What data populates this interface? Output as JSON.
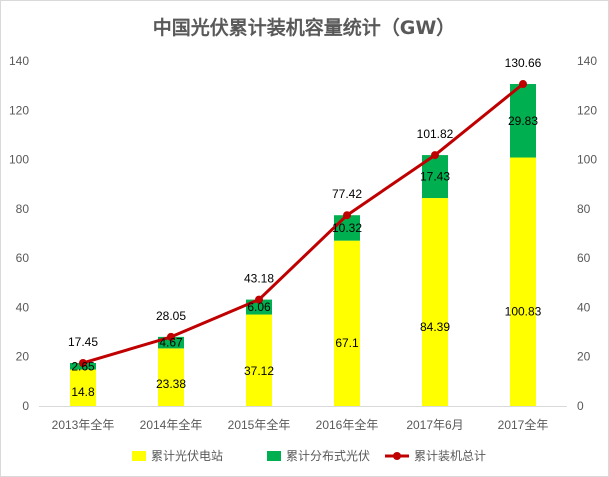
{
  "chart_data": {
    "type": "bar",
    "stacked": true,
    "title": "中国光伏累计装机容量统计（GW）",
    "categories": [
      "2013年全年",
      "2014年全年",
      "2015年全年",
      "2016年全年",
      "2017年6月",
      "2017全年"
    ],
    "series": [
      {
        "name": "累计光伏电站",
        "kind": "bar",
        "color": "#ffff00",
        "values": [
          14.8,
          23.38,
          37.12,
          67.1,
          84.39,
          100.83
        ],
        "labels": [
          "14.8",
          "23.38",
          "37.12",
          "67.1",
          "84.39",
          "100.83"
        ]
      },
      {
        "name": "累计分布式光伏",
        "kind": "bar",
        "color": "#00b050",
        "values": [
          2.65,
          4.67,
          6.06,
          10.32,
          17.43,
          29.83
        ],
        "labels": [
          "2.65",
          "4.67",
          "6.06",
          "10.32",
          "17.43",
          "29.83"
        ]
      },
      {
        "name": "累计装机总计",
        "kind": "line",
        "color": "#c00000",
        "values": [
          17.45,
          28.05,
          43.18,
          77.42,
          101.82,
          130.66
        ],
        "labels": [
          "17.45",
          "28.05",
          "43.18",
          "77.42",
          "101.82",
          "130.66"
        ]
      }
    ],
    "ylim": [
      0,
      140
    ],
    "yticks": [
      "0",
      "20",
      "40",
      "60",
      "80",
      "100",
      "120",
      "140"
    ],
    "secondary_yticks": [
      "0",
      "20",
      "40",
      "60",
      "80",
      "100",
      "120",
      "140"
    ],
    "grid": false,
    "legend_position": "bottom"
  }
}
